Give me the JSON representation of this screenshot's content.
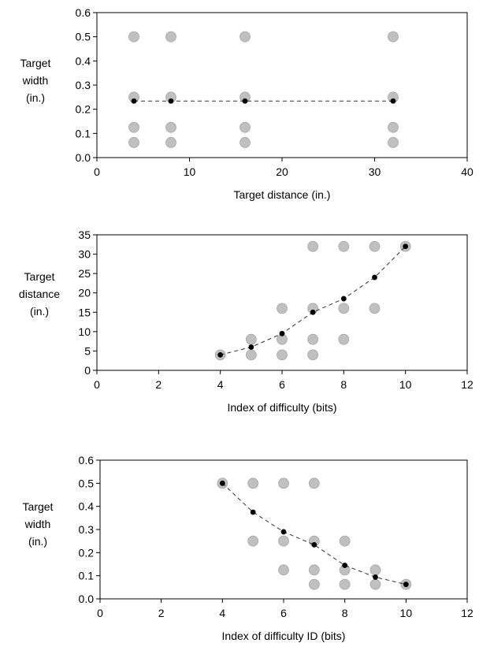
{
  "chart_data": [
    {
      "type": "scatter",
      "title": "",
      "xlabel": "Target distance (in.)",
      "ylabel_lines": [
        "Target",
        "width",
        "(in.)"
      ],
      "xlim": [
        0,
        40
      ],
      "ylim": [
        0,
        0.6
      ],
      "xticks": [
        0,
        10,
        20,
        30,
        40
      ],
      "yticks": [
        0.0,
        0.1,
        0.2,
        0.3,
        0.4,
        0.5,
        0.6
      ],
      "ytick_decimals": 1,
      "grid": false,
      "series": [
        {
          "marker": "large-gray-circle",
          "color": "#c0c0c0",
          "points": [
            [
              4,
              0.5
            ],
            [
              8,
              0.5
            ],
            [
              16,
              0.5
            ],
            [
              32,
              0.5
            ],
            [
              4,
              0.25
            ],
            [
              8,
              0.25
            ],
            [
              16,
              0.25
            ],
            [
              32,
              0.25
            ],
            [
              4,
              0.125
            ],
            [
              8,
              0.125
            ],
            [
              16,
              0.125
            ],
            [
              32,
              0.125
            ],
            [
              4,
              0.0625
            ],
            [
              8,
              0.0625
            ],
            [
              16,
              0.0625
            ],
            [
              32,
              0.0625
            ]
          ]
        },
        {
          "marker": "small-black-dot",
          "color": "#000000",
          "line": "dashed",
          "points": [
            [
              4,
              0.234
            ],
            [
              8,
              0.234
            ],
            [
              16,
              0.234
            ],
            [
              32,
              0.234
            ]
          ]
        }
      ]
    },
    {
      "type": "scatter",
      "title": "",
      "xlabel": "Index of difficulty (bits)",
      "ylabel_lines": [
        "Target",
        "distance",
        "(in.)"
      ],
      "xlim": [
        0,
        12
      ],
      "ylim": [
        0,
        35
      ],
      "xticks": [
        0,
        2,
        4,
        6,
        8,
        10,
        12
      ],
      "yticks": [
        0,
        5,
        10,
        15,
        20,
        25,
        30,
        35
      ],
      "ytick_decimals": 0,
      "grid": false,
      "series": [
        {
          "marker": "large-gray-circle",
          "color": "#c0c0c0",
          "points": [
            [
              4,
              4
            ],
            [
              5,
              4
            ],
            [
              6,
              4
            ],
            [
              7,
              4
            ],
            [
              5,
              8
            ],
            [
              6,
              8
            ],
            [
              7,
              8
            ],
            [
              8,
              8
            ],
            [
              6,
              16
            ],
            [
              7,
              16
            ],
            [
              8,
              16
            ],
            [
              9,
              16
            ],
            [
              7,
              32
            ],
            [
              8,
              32
            ],
            [
              9,
              32
            ],
            [
              10,
              32
            ]
          ]
        },
        {
          "marker": "small-black-dot",
          "color": "#000000",
          "line": "dashed",
          "points": [
            [
              4,
              4
            ],
            [
              5,
              6
            ],
            [
              6,
              9.5
            ],
            [
              7,
              15
            ],
            [
              8,
              18.5
            ],
            [
              9,
              24
            ],
            [
              10,
              32
            ]
          ]
        }
      ]
    },
    {
      "type": "scatter",
      "title": "",
      "xlabel": "Index of difficulty ID (bits)",
      "ylabel_lines": [
        "Target",
        "width",
        "(in.)"
      ],
      "xlim": [
        0,
        12
      ],
      "ylim": [
        0,
        0.6
      ],
      "xticks": [
        0,
        2,
        4,
        6,
        8,
        10,
        12
      ],
      "yticks": [
        0.0,
        0.1,
        0.2,
        0.3,
        0.4,
        0.5,
        0.6
      ],
      "ytick_decimals": 1,
      "grid": false,
      "series": [
        {
          "marker": "large-gray-circle",
          "color": "#c0c0c0",
          "points": [
            [
              4,
              0.5
            ],
            [
              5,
              0.5
            ],
            [
              6,
              0.5
            ],
            [
              7,
              0.5
            ],
            [
              5,
              0.25
            ],
            [
              6,
              0.25
            ],
            [
              7,
              0.25
            ],
            [
              8,
              0.25
            ],
            [
              6,
              0.125
            ],
            [
              7,
              0.125
            ],
            [
              8,
              0.125
            ],
            [
              9,
              0.125
            ],
            [
              7,
              0.0625
            ],
            [
              8,
              0.0625
            ],
            [
              9,
              0.0625
            ],
            [
              10,
              0.0625
            ]
          ]
        },
        {
          "marker": "small-black-dot",
          "color": "#000000",
          "line": "dashed",
          "points": [
            [
              4,
              0.5
            ],
            [
              5,
              0.375
            ],
            [
              6,
              0.29
            ],
            [
              7,
              0.234
            ],
            [
              8,
              0.145
            ],
            [
              9,
              0.094
            ],
            [
              10,
              0.0625
            ]
          ]
        }
      ]
    }
  ]
}
